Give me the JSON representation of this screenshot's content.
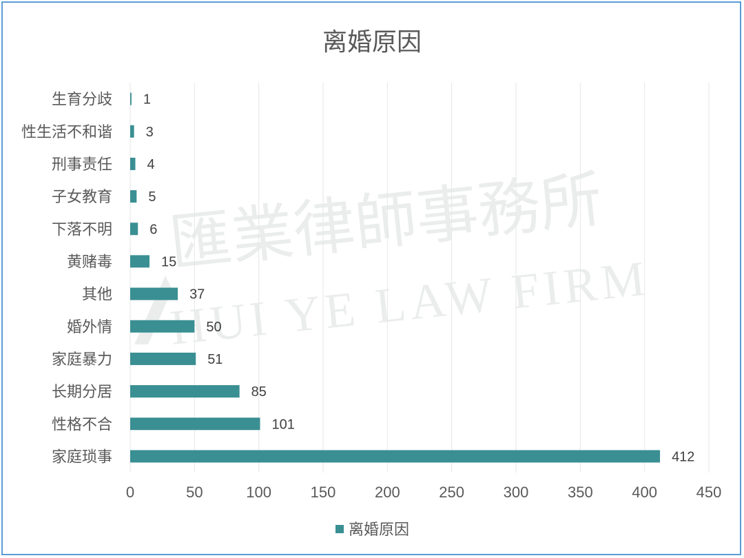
{
  "chart_data": {
    "type": "bar",
    "orientation": "horizontal",
    "title": "离婚原因",
    "categories": [
      "家庭琐事",
      "性格不合",
      "长期分居",
      "家庭暴力",
      "婚外情",
      "其他",
      "黄赌毒",
      "下落不明",
      "子女教育",
      "刑事责任",
      "性生活不和谐",
      "生育分歧"
    ],
    "series": [
      {
        "name": "离婚原因",
        "values": [
          412,
          101,
          85,
          51,
          50,
          37,
          15,
          6,
          5,
          4,
          3,
          1
        ],
        "color": "#3a8f93"
      }
    ],
    "xlim": [
      0,
      450
    ],
    "xticks": [
      0,
      50,
      100,
      150,
      200,
      250,
      300,
      350,
      400,
      450
    ],
    "xlabel": "",
    "ylabel": "",
    "grid": "vertical",
    "legend": "bottom",
    "data_labels": true
  },
  "watermark": {
    "chinese": "匯業律師事務所",
    "english": "HUI YE LAW FIRM"
  },
  "colors": {
    "bar": "#3a8f93",
    "border": "#5b9bd5",
    "grid": "#e6e6e6",
    "text": "#595959"
  }
}
